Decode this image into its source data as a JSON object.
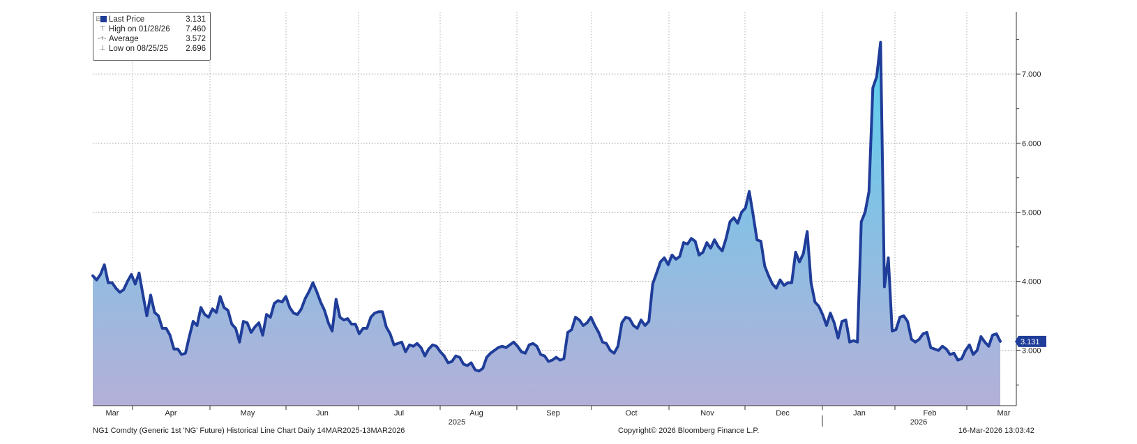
{
  "chart_data": {
    "type": "area",
    "ylim": [
      2.2,
      7.9
    ],
    "y_ticks": [
      "3.000",
      "4.000",
      "5.000",
      "6.000",
      "7.000"
    ],
    "x_month_labels": [
      "Mar",
      "Apr",
      "May",
      "Jun",
      "Jul",
      "Aug",
      "Sep",
      "Oct",
      "Nov",
      "Dec",
      "Jan",
      "Feb",
      "Mar"
    ],
    "x_year_labels": [
      "2025",
      "2026"
    ],
    "last_value_label": "3.131",
    "grid": true,
    "legend_position": "top-left",
    "legend": [
      {
        "label": "Last Price",
        "value": "3.131"
      },
      {
        "label": "High on 01/28/26",
        "value": "7.460"
      },
      {
        "label": "Average",
        "value": "3.572"
      },
      {
        "label": "Low on 08/25/25",
        "value": "2.696"
      }
    ],
    "series": [
      {
        "values": [
          4.08,
          4.02,
          4.1,
          4.24,
          3.98,
          3.98,
          3.9,
          3.84,
          3.88,
          4.0,
          4.1,
          3.96,
          4.12,
          3.8,
          3.5,
          3.8,
          3.55,
          3.5,
          3.32,
          3.32,
          3.22,
          3.02,
          3.02,
          2.94,
          2.96,
          3.2,
          3.42,
          3.36,
          3.62,
          3.52,
          3.48,
          3.6,
          3.55,
          3.78,
          3.62,
          3.58,
          3.38,
          3.32,
          3.12,
          3.42,
          3.4,
          3.26,
          3.34,
          3.4,
          3.22,
          3.52,
          3.48,
          3.68,
          3.72,
          3.7,
          3.78,
          3.62,
          3.54,
          3.52,
          3.6,
          3.75,
          3.85,
          3.98,
          3.85,
          3.7,
          3.58,
          3.4,
          3.28,
          3.74,
          3.48,
          3.44,
          3.46,
          3.38,
          3.38,
          3.24,
          3.32,
          3.32,
          3.48,
          3.54,
          3.56,
          3.56,
          3.34,
          3.24,
          3.08,
          3.1,
          3.12,
          2.98,
          3.08,
          3.06,
          3.1,
          3.04,
          2.92,
          3.02,
          3.08,
          3.06,
          2.98,
          2.92,
          2.82,
          2.84,
          2.92,
          2.9,
          2.8,
          2.78,
          2.82,
          2.72,
          2.7,
          2.74,
          2.9,
          2.96,
          3.0,
          3.04,
          3.06,
          3.04,
          3.08,
          3.12,
          3.06,
          2.98,
          2.96,
          3.08,
          3.1,
          3.06,
          2.94,
          2.92,
          2.84,
          2.86,
          2.9,
          2.86,
          2.88,
          3.26,
          3.3,
          3.48,
          3.44,
          3.36,
          3.4,
          3.48,
          3.36,
          3.26,
          3.12,
          3.1,
          3.0,
          2.96,
          3.06,
          3.4,
          3.48,
          3.46,
          3.36,
          3.32,
          3.44,
          3.36,
          3.42,
          3.96,
          4.12,
          4.28,
          4.34,
          4.24,
          4.38,
          4.32,
          4.36,
          4.56,
          4.54,
          4.62,
          4.58,
          4.38,
          4.42,
          4.56,
          4.48,
          4.6,
          4.5,
          4.44,
          4.62,
          4.86,
          4.92,
          4.84,
          5.0,
          5.06,
          5.3,
          4.96,
          4.6,
          4.58,
          4.22,
          4.08,
          3.96,
          3.9,
          4.02,
          3.94,
          3.98,
          3.98,
          4.42,
          4.28,
          4.4,
          4.72,
          3.98,
          3.7,
          3.64,
          3.52,
          3.36,
          3.54,
          3.4,
          3.18,
          3.42,
          3.44,
          3.12,
          3.14,
          3.12,
          4.86,
          5.0,
          5.3,
          6.8,
          6.96,
          7.46,
          3.92,
          4.34,
          3.28,
          3.3,
          3.48,
          3.5,
          3.42,
          3.16,
          3.12,
          3.16,
          3.24,
          3.26,
          3.04,
          3.02,
          3.0,
          3.06,
          3.02,
          2.94,
          2.96,
          2.86,
          2.88,
          3.0,
          3.08,
          2.94,
          3.0,
          3.2,
          3.12,
          3.06,
          3.22,
          3.24,
          3.13
        ]
      }
    ]
  },
  "footer": {
    "left": "NG1 Comdty (Generic 1st 'NG' Future) Historical Line Chart Daily 14MAR2025-13MAR2026",
    "center": "Copyright© 2026 Bloomberg Finance L.P.",
    "right": "16-Mar-2026 13:03:42"
  },
  "colors": {
    "line": "#1f3d99",
    "fill_top": "#5ad0f0",
    "fill_bottom": "#b4b0d8",
    "grid": "#999999"
  }
}
